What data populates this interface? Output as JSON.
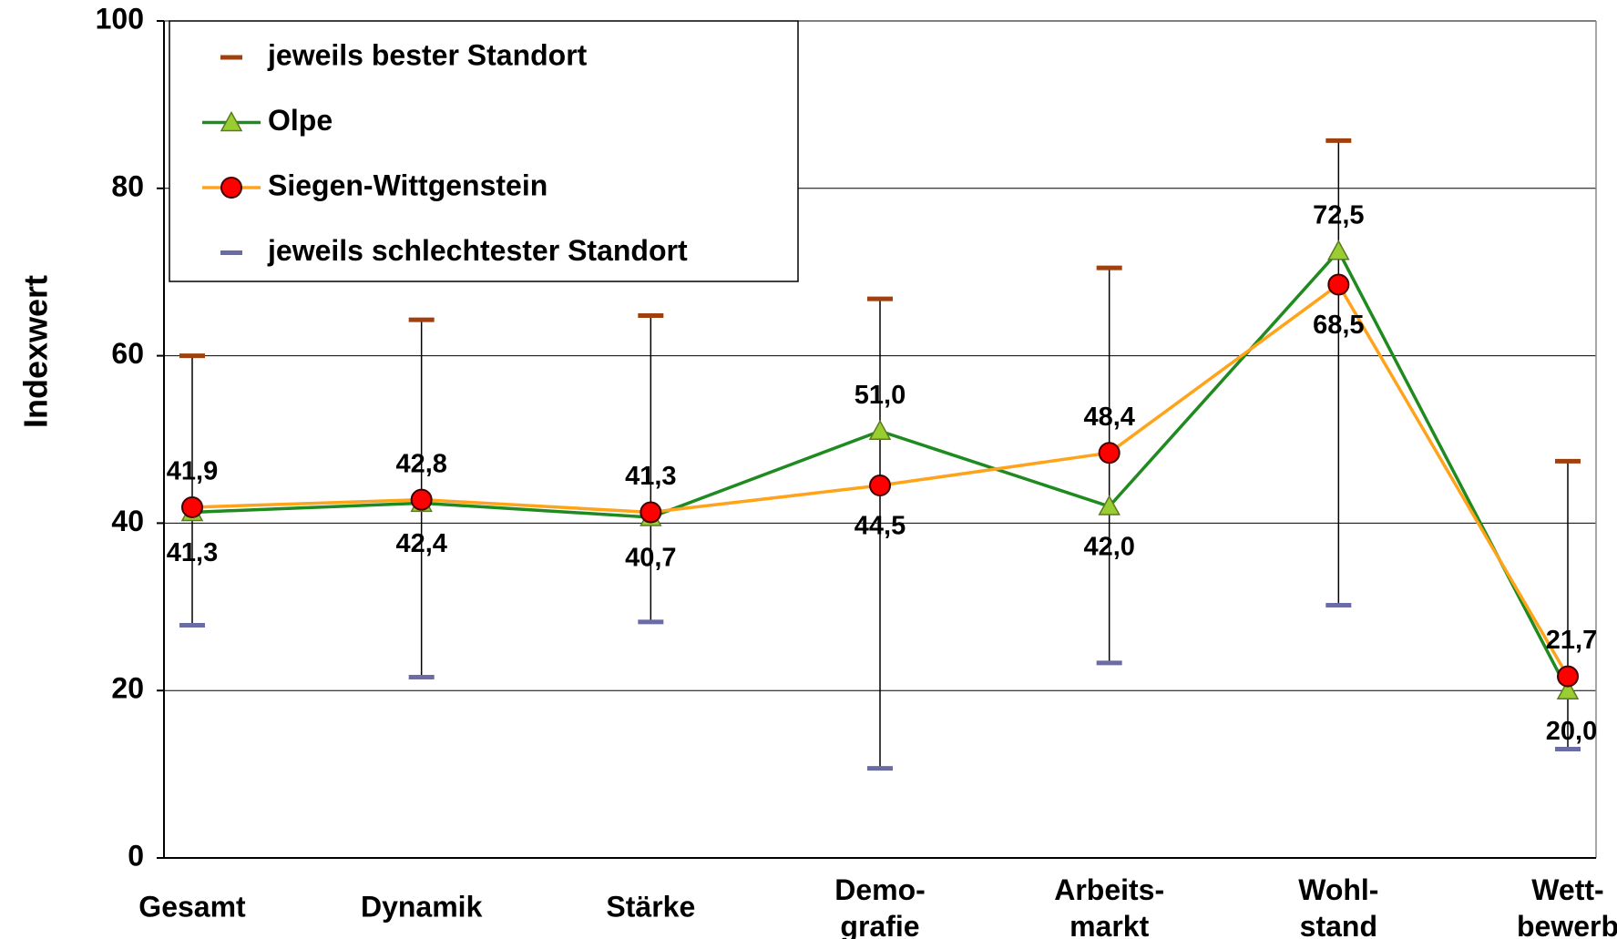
{
  "chart_data": {
    "type": "line",
    "y_label": "Indexwert",
    "categories": [
      "Gesamt",
      "Dynamik",
      "Stärke",
      "Demo-\ngrafie",
      "Arbeits-\nmarkt",
      "Wohl-\nstand",
      "Wett-\nbewerb"
    ],
    "ylim": [
      0,
      100
    ],
    "yticks": [
      0,
      20,
      40,
      60,
      80,
      100
    ],
    "grid": true,
    "legend": "top-left",
    "series": [
      {
        "name": "jeweils bester Standort",
        "color": "#a0400f",
        "marker": "dash",
        "values": [
          60.0,
          64.3,
          64.8,
          66.8,
          70.5,
          85.7,
          47.4
        ]
      },
      {
        "name": "Olpe",
        "color": "#1f8a1f",
        "marker": "triangle",
        "marker_color": "#9acd32",
        "values": [
          41.3,
          42.4,
          40.7,
          51.0,
          42.0,
          72.5,
          20.0
        ],
        "value_labels": [
          "41,3",
          "42,4",
          "40,7",
          "51,0",
          "42,0",
          "72,5",
          "20,0"
        ]
      },
      {
        "name": "Siegen-Wittgenstein",
        "color": "#ffa31a",
        "marker": "circle",
        "marker_color": "#ff0000",
        "values": [
          41.9,
          42.8,
          41.3,
          44.5,
          48.4,
          68.5,
          21.7
        ],
        "value_labels": [
          "41,9",
          "42,8",
          "41,3",
          "44,5",
          "48,4",
          "68,5",
          "21,7"
        ]
      },
      {
        "name": "jeweils schlechtester Standort",
        "color": "#6b6ba6",
        "marker": "dash",
        "values": [
          27.8,
          21.6,
          28.2,
          10.7,
          23.3,
          30.2,
          13.0
        ]
      }
    ]
  }
}
